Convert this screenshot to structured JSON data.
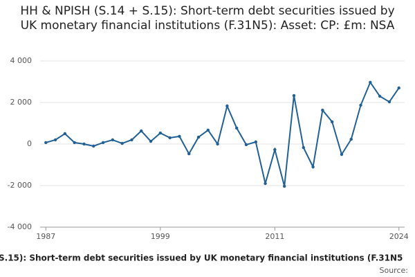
{
  "chart_data": {
    "type": "line",
    "title": "HH & NPISH (S.14 + S.15): Short-term debt securities issued by UK monetary financial institutions (F.31N5): Asset: CP: £m: NSA",
    "x": [
      1987,
      1988,
      1989,
      1990,
      1991,
      1992,
      1993,
      1994,
      1995,
      1996,
      1997,
      1998,
      1999,
      2000,
      2001,
      2002,
      2003,
      2004,
      2005,
      2006,
      2007,
      2008,
      2009,
      2010,
      2011,
      2012,
      2013,
      2014,
      2015,
      2016,
      2017,
      2018,
      2019,
      2020,
      2021,
      2022,
      2023,
      2024
    ],
    "series": [
      {
        "name": "S.15): Short-term debt securities issued by UK monetary financial institutions (F.31N5",
        "color": "#206095",
        "values": [
          70,
          200,
          500,
          70,
          0,
          -100,
          70,
          200,
          30,
          200,
          630,
          130,
          530,
          300,
          370,
          -470,
          330,
          670,
          0,
          1830,
          770,
          -30,
          100,
          -1900,
          -270,
          -2030,
          2330,
          -170,
          -1100,
          1630,
          1070,
          -500,
          230,
          1870,
          2970,
          2300,
          2030,
          2700
        ]
      }
    ],
    "xlim": [
      1986.4,
      2024.6
    ],
    "xticks": [
      1987,
      1999,
      2011,
      2024
    ],
    "ylim": [
      -4000,
      4000
    ],
    "yticks": [
      {
        "value": -4000,
        "label": "-4 000"
      },
      {
        "value": -2000,
        "label": "-2 000"
      },
      0,
      {
        "value": 2000,
        "label": "2 000"
      },
      {
        "value": 4000,
        "label": "4 000"
      }
    ],
    "grid": true,
    "source": "Source:"
  }
}
